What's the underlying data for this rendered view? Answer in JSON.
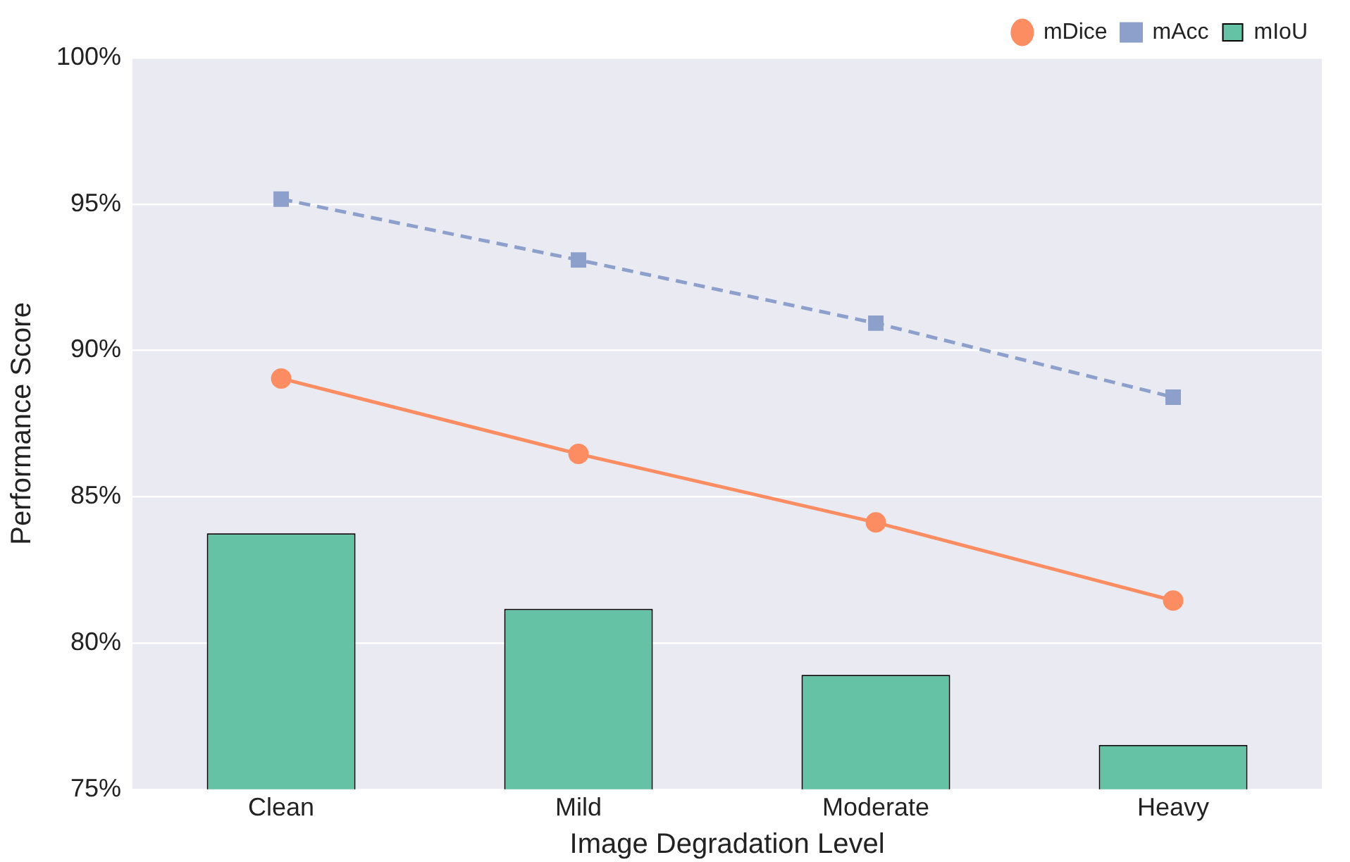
{
  "chart_data": {
    "type": "bar",
    "xlabel": "Image Degradation Level",
    "ylabel": "Performance Score",
    "categories": [
      "Clean",
      "Mild",
      "Moderate",
      "Heavy"
    ],
    "series": [
      {
        "name": "mDice",
        "type": "line",
        "color": "#fc8d62",
        "marker": "circle",
        "line_style": "solid",
        "values": [
          89.04,
          86.46,
          84.12,
          81.45
        ]
      },
      {
        "name": "mAcc",
        "type": "line",
        "color": "#8da0cb",
        "marker": "square",
        "line_style": "dashed",
        "values": [
          95.17,
          93.09,
          90.93,
          88.4
        ]
      },
      {
        "name": "mIoU",
        "color": "#66c2a5",
        "values": [
          83.75,
          81.17,
          78.91,
          76.52
        ]
      }
    ],
    "ylim": [
      75,
      100
    ],
    "yticks": [
      {
        "value": 75,
        "label": "75%"
      },
      {
        "value": 80,
        "label": "80%"
      },
      {
        "value": 85,
        "label": "85%"
      },
      {
        "value": 90,
        "label": "90%"
      },
      {
        "value": 95,
        "label": "95%"
      },
      {
        "value": 100,
        "label": "100%"
      }
    ],
    "grid": "y",
    "legend": "top right"
  }
}
